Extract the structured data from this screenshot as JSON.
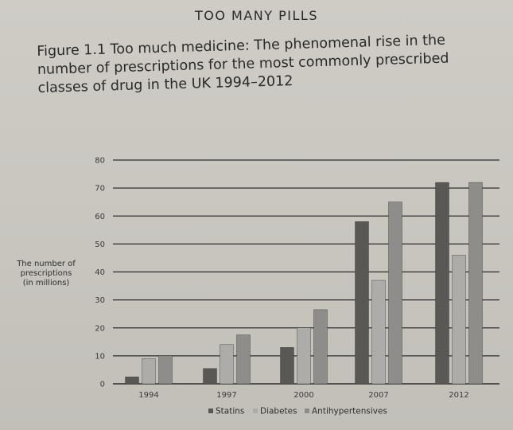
{
  "page_header": "TOO MANY PILLS",
  "caption": "Figure 1.1 Too much medicine: The phenomenal rise in the number of prescriptions for the most commonly prescribed classes of drug in the UK 1994–2012",
  "colors": {
    "Statins": "#5a5855",
    "Diabetes": "#aeaca8",
    "Antihypertensives": "#8f8d89",
    "grid": "#2e2d2b"
  },
  "chart_data": {
    "type": "bar",
    "categories": [
      "1994",
      "1997",
      "2000",
      "2007",
      "2012"
    ],
    "series": [
      {
        "name": "Statins",
        "values": [
          2.5,
          5.5,
          13,
          58,
          72
        ]
      },
      {
        "name": "Diabetes",
        "values": [
          9,
          14,
          20,
          37,
          46
        ]
      },
      {
        "name": "Antihypertensives",
        "values": [
          10,
          17.5,
          26.5,
          65,
          72
        ]
      }
    ],
    "yticks": [
      "0",
      "10",
      "20",
      "30",
      "40",
      "50",
      "60",
      "70",
      "80"
    ],
    "ylim": [
      0,
      80
    ],
    "ylabel_lines": [
      "The number of",
      "prescriptions",
      "(in millions)"
    ],
    "grid": true,
    "legend_position": "bottom"
  }
}
